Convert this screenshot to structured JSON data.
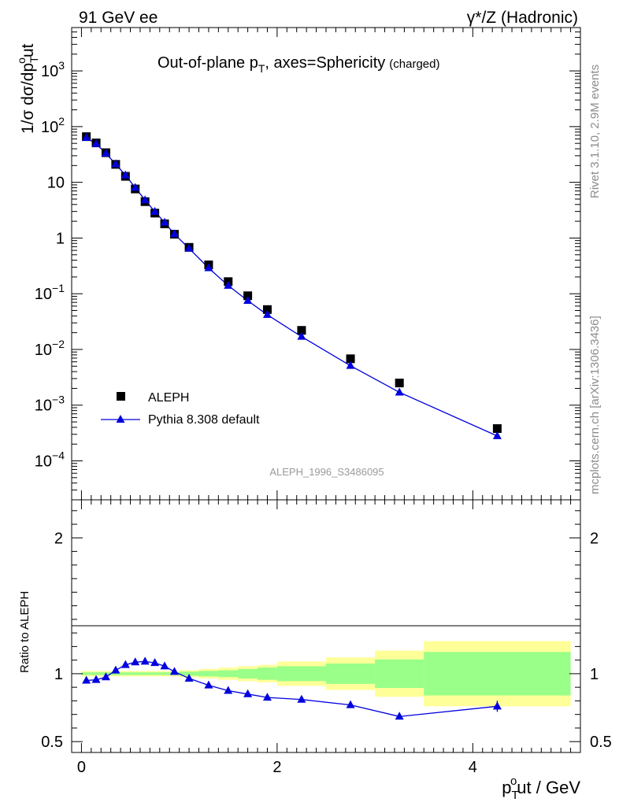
{
  "header": {
    "left": "91 GeV ee",
    "right": "γ*/Z (Hadronic)"
  },
  "side_labels": {
    "version": "Rivet 3.1.10,  2.9M events",
    "source": "mcplots.cern.ch [arXiv:1306.3436]"
  },
  "chart_data": [
    {
      "type": "scatter",
      "panel": "main",
      "title": "Out-of-plane p",
      "title_sub": "T",
      "title_rest": ", axes=Sphericity",
      "title_note": "(charged)",
      "ylabel_prefix": "1/σ dσ/dp",
      "ylabel_sub": "T",
      "ylabel_sup": "o",
      "ylabel_suffix": "ut",
      "yscale": "log",
      "ylim": [
        2e-05,
        6000
      ],
      "xlim": [
        -0.1,
        5.1
      ],
      "y_ticks": [
        {
          "value": 0.0001,
          "label": "10",
          "exp": "−4"
        },
        {
          "value": 0.001,
          "label": "10",
          "exp": "−3"
        },
        {
          "value": 0.01,
          "label": "10",
          "exp": "−2"
        },
        {
          "value": 0.1,
          "label": "10",
          "exp": "−1"
        },
        {
          "value": 1,
          "label": "1",
          "exp": ""
        },
        {
          "value": 10,
          "label": "10",
          "exp": ""
        },
        {
          "value": 100,
          "label": "10",
          "exp": "2"
        },
        {
          "value": 1000,
          "label": "10",
          "exp": "3"
        }
      ],
      "analysis_label": "ALEPH_1996_S3486095",
      "legend_position": "lower-left",
      "series": [
        {
          "name": "ALEPH",
          "marker": "square",
          "color": "#000000",
          "x": [
            0.05,
            0.15,
            0.25,
            0.35,
            0.45,
            0.55,
            0.65,
            0.75,
            0.85,
            0.95,
            1.1,
            1.3,
            1.5,
            1.7,
            1.9,
            2.25,
            2.75,
            3.25,
            4.25
          ],
          "y": [
            66,
            51,
            34,
            21,
            12.8,
            7.6,
            4.5,
            2.8,
            1.8,
            1.17,
            0.68,
            0.33,
            0.165,
            0.092,
            0.052,
            0.022,
            0.0068,
            0.0025,
            0.00038
          ]
        },
        {
          "name": "Pythia 8.308 default",
          "marker": "triangle",
          "color": "#0000dd",
          "x": [
            0.05,
            0.15,
            0.25,
            0.35,
            0.45,
            0.55,
            0.65,
            0.75,
            0.85,
            0.95,
            1.1,
            1.3,
            1.5,
            1.7,
            1.9,
            2.25,
            2.75,
            3.25,
            4.25
          ],
          "y": [
            63,
            49,
            33,
            21.2,
            13.4,
            8.0,
            4.8,
            2.98,
            1.9,
            1.18,
            0.65,
            0.29,
            0.14,
            0.075,
            0.042,
            0.017,
            0.0051,
            0.0017,
            0.00028
          ]
        }
      ]
    },
    {
      "type": "line",
      "panel": "ratio",
      "ylabel": "Ratio to ALEPH",
      "ylim": [
        0.42,
        2.28
      ],
      "xlim": [
        -0.1,
        5.1
      ],
      "y_ticks": [
        0.5,
        1,
        2
      ],
      "y_tick_labels": [
        "0.5",
        "1",
        "2"
      ],
      "x_ticks": [
        0,
        2,
        4
      ],
      "x_tick_labels": [
        "0",
        "2",
        "4"
      ],
      "xlabel_prefix": "p",
      "xlabel_sub": "T",
      "xlabel_sup": "o",
      "xlabel_suffix": "ut / GeV",
      "bands": [
        {
          "x0": 0.0,
          "x1": 0.1,
          "stat": [
            0.99,
            1.01
          ],
          "total": [
            0.98,
            1.02
          ]
        },
        {
          "x0": 0.1,
          "x1": 0.2,
          "stat": [
            0.99,
            1.01
          ],
          "total": [
            0.98,
            1.02
          ]
        },
        {
          "x0": 0.2,
          "x1": 0.3,
          "stat": [
            0.99,
            1.01
          ],
          "total": [
            0.98,
            1.02
          ]
        },
        {
          "x0": 0.3,
          "x1": 0.4,
          "stat": [
            0.99,
            1.01
          ],
          "total": [
            0.98,
            1.02
          ]
        },
        {
          "x0": 0.4,
          "x1": 0.5,
          "stat": [
            0.99,
            1.01
          ],
          "total": [
            0.98,
            1.02
          ]
        },
        {
          "x0": 0.5,
          "x1": 0.6,
          "stat": [
            0.99,
            1.01
          ],
          "total": [
            0.98,
            1.02
          ]
        },
        {
          "x0": 0.6,
          "x1": 0.7,
          "stat": [
            0.99,
            1.01
          ],
          "total": [
            0.98,
            1.02
          ]
        },
        {
          "x0": 0.7,
          "x1": 0.8,
          "stat": [
            0.99,
            1.01
          ],
          "total": [
            0.98,
            1.02
          ]
        },
        {
          "x0": 0.8,
          "x1": 0.9,
          "stat": [
            0.99,
            1.01
          ],
          "total": [
            0.98,
            1.02
          ]
        },
        {
          "x0": 0.9,
          "x1": 1.0,
          "stat": [
            0.99,
            1.01
          ],
          "total": [
            0.98,
            1.02
          ]
        },
        {
          "x0": 1.0,
          "x1": 1.2,
          "stat": [
            0.985,
            1.015
          ],
          "total": [
            0.975,
            1.025
          ]
        },
        {
          "x0": 1.2,
          "x1": 1.4,
          "stat": [
            0.98,
            1.02
          ],
          "total": [
            0.965,
            1.035
          ]
        },
        {
          "x0": 1.4,
          "x1": 1.6,
          "stat": [
            0.975,
            1.025
          ],
          "total": [
            0.955,
            1.045
          ]
        },
        {
          "x0": 1.6,
          "x1": 1.8,
          "stat": [
            0.965,
            1.035
          ],
          "total": [
            0.945,
            1.055
          ]
        },
        {
          "x0": 1.8,
          "x1": 2.0,
          "stat": [
            0.955,
            1.045
          ],
          "total": [
            0.935,
            1.065
          ]
        },
        {
          "x0": 2.0,
          "x1": 2.5,
          "stat": [
            0.945,
            1.055
          ],
          "total": [
            0.91,
            1.09
          ]
        },
        {
          "x0": 2.5,
          "x1": 3.0,
          "stat": [
            0.925,
            1.075
          ],
          "total": [
            0.88,
            1.12
          ]
        },
        {
          "x0": 3.0,
          "x1": 3.5,
          "stat": [
            0.895,
            1.105
          ],
          "total": [
            0.83,
            1.17
          ]
        },
        {
          "x0": 3.5,
          "x1": 5.0,
          "stat": [
            0.84,
            1.16
          ],
          "total": [
            0.76,
            1.24
          ]
        }
      ],
      "series": [
        {
          "name": "Pythia 8.308 default",
          "marker": "triangle",
          "color": "#0000dd",
          "x": [
            0.05,
            0.15,
            0.25,
            0.35,
            0.45,
            0.55,
            0.65,
            0.75,
            0.85,
            0.95,
            1.1,
            1.3,
            1.5,
            1.7,
            1.9,
            2.25,
            2.75,
            3.25,
            4.25
          ],
          "y": [
            0.95,
            0.955,
            0.975,
            1.025,
            1.065,
            1.085,
            1.09,
            1.08,
            1.055,
            1.015,
            0.965,
            0.915,
            0.875,
            0.85,
            0.825,
            0.81,
            0.77,
            0.685,
            0.76
          ]
        }
      ]
    }
  ],
  "colors": {
    "data": "#000000",
    "mc": "#0000dd",
    "stat_band": "#99ff88",
    "total_band": "#ffff99"
  }
}
